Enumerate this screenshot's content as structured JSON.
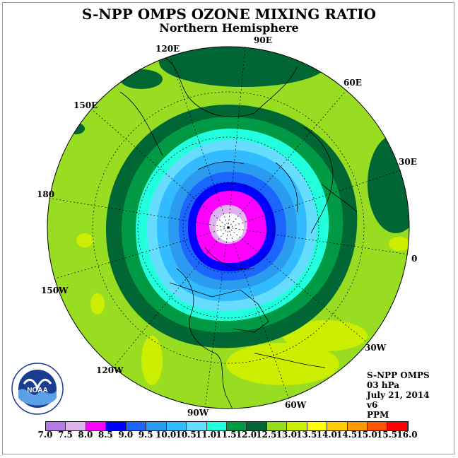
{
  "title": "S-NPP OMPS OZONE MIXING RATIO",
  "subtitle": "Northern Hemisphere",
  "longitude_labels": {
    "e90": "90E",
    "e60": "60E",
    "e30": "30E",
    "zero": "0",
    "w30": "30W",
    "w60": "60W",
    "w90": "90W",
    "w120": "120W",
    "w150": "150W",
    "e180": "180",
    "e150": "150E",
    "e120": "120E"
  },
  "info": {
    "instrument": "S-NPP OMPS",
    "level": "03 hPa",
    "date": "July 21, 2014",
    "version": "v6",
    "units": "PPM"
  },
  "logo": {
    "text": "NOAA",
    "ring_text": "NATIONAL OCEANIC AND ATMOSPHERIC ADMINISTRATION · U.S. DEPARTMENT OF COMMERCE"
  },
  "colorbar": {
    "ticks": [
      "7.0",
      "7.5",
      "8.0",
      "8.5",
      "9.0",
      "9.5",
      "10.0",
      "10.5",
      "11.0",
      "11.5",
      "12.0",
      "12.5",
      "13.0",
      "13.5",
      "14.0",
      "14.5",
      "15.0",
      "15.5",
      "16.0"
    ],
    "colors": [
      "#b47ae8",
      "#e0b3f0",
      "#ff00ff",
      "#0000ff",
      "#1a66ff",
      "#2b9bf0",
      "#33bbff",
      "#66ddff",
      "#22ffdd",
      "#009944",
      "#006633",
      "#99dd22",
      "#ccee00",
      "#ffff00",
      "#ffcc00",
      "#ff9900",
      "#ff5500",
      "#ff0000",
      "#885533"
    ]
  },
  "ozone_colors": {
    "band_115": "#006633",
    "band_12": "#009944",
    "band_125": "#99dd22",
    "band_13": "#ccee00",
    "band_11": "#22ffdd",
    "band_105": "#66ddff",
    "band_10": "#33bbff",
    "band_95": "#2b9bf0",
    "band_9": "#1a66ff",
    "band_85": "#0000ff",
    "band_8": "#ff00ff",
    "band_75": "#e0b3f0",
    "pole": "#ffffff"
  }
}
